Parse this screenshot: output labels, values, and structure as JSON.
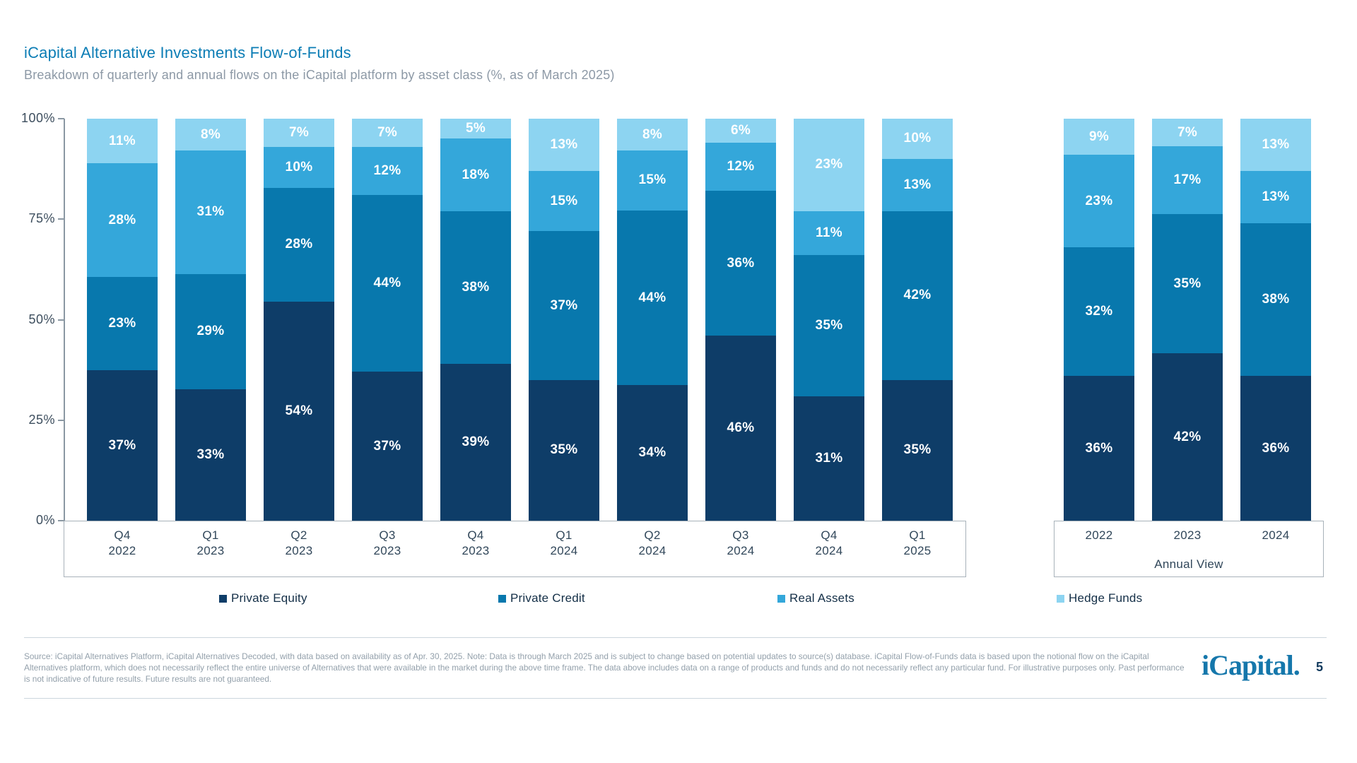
{
  "header": {
    "title": "iCapital Alternative Investments Flow-of-Funds",
    "subtitle": "Breakdown of quarterly and annual flows on the iCapital platform by asset class (%, as of March 2025)"
  },
  "chart_data": {
    "type": "bar",
    "stacked": true,
    "value_unit": "%",
    "ylim": [
      0,
      100
    ],
    "y_ticks": [
      "100%",
      "75%",
      "50%",
      "25%",
      "0%"
    ],
    "grid": false,
    "legend_position": "bottom",
    "series_colors": {
      "Private Equity": "#0e3d68",
      "Private Credit": "#0878ad",
      "Real Assets": "#34a7da",
      "Hedge Funds": "#8dd4f1"
    },
    "quarterly": {
      "categories": [
        [
          "Q4",
          "2022"
        ],
        [
          "Q1",
          "2023"
        ],
        [
          "Q2",
          "2023"
        ],
        [
          "Q3",
          "2023"
        ],
        [
          "Q4",
          "2023"
        ],
        [
          "Q1",
          "2024"
        ],
        [
          "Q2",
          "2024"
        ],
        [
          "Q3",
          "2024"
        ],
        [
          "Q4",
          "2024"
        ],
        [
          "Q1",
          "2025"
        ]
      ],
      "series": [
        {
          "name": "Private Equity",
          "values": [
            37,
            33,
            54,
            37,
            39,
            35,
            34,
            46,
            31,
            35
          ]
        },
        {
          "name": "Private Credit",
          "values": [
            23,
            29,
            28,
            44,
            38,
            37,
            44,
            36,
            35,
            42
          ]
        },
        {
          "name": "Real Assets",
          "values": [
            28,
            31,
            10,
            12,
            18,
            15,
            15,
            12,
            11,
            13
          ]
        },
        {
          "name": "Hedge Funds",
          "values": [
            11,
            8,
            7,
            7,
            5,
            13,
            8,
            6,
            23,
            10
          ]
        }
      ]
    },
    "annual": {
      "axis_label": "Annual View",
      "categories": [
        "2022",
        "2023",
        "2024"
      ],
      "series": [
        {
          "name": "Private Equity",
          "values": [
            36,
            42,
            36
          ]
        },
        {
          "name": "Private Credit",
          "values": [
            32,
            35,
            38
          ]
        },
        {
          "name": "Real Assets",
          "values": [
            23,
            17,
            13
          ]
        },
        {
          "name": "Hedge Funds",
          "values": [
            9,
            7,
            13
          ]
        }
      ]
    }
  },
  "legend": {
    "items": [
      {
        "label": "Private Equity"
      },
      {
        "label": "Private Credit"
      },
      {
        "label": "Real Assets"
      },
      {
        "label": "Hedge Funds"
      }
    ]
  },
  "footer": {
    "disclaimer": "Source: iCapital Alternatives Platform, iCapital Alternatives Decoded, with data based on availability as of Apr. 30, 2025. Note: Data is through March 2025 and is subject to change based on potential updates to source(s) database. iCapital Flow-of-Funds data is based upon the notional flow on the iCapital Alternatives platform, which does not necessarily reflect the entire universe of Alternatives that were available in the market during the above time frame. The data above includes data on a range of products and funds and do not necessarily reflect any particular fund. For illustrative purposes only. Past performance is not indicative of future results. Future results are not guaranteed.",
    "logo_text": "iCapital",
    "logo_dot": ".",
    "page_number": "5"
  }
}
